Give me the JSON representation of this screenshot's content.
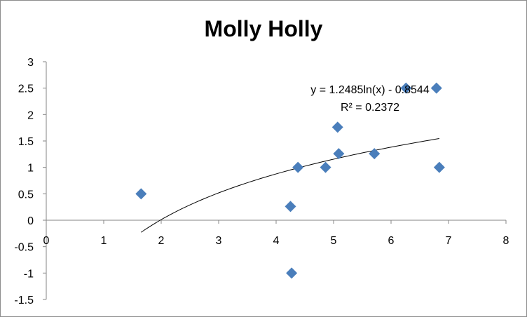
{
  "chart_data": {
    "type": "scatter",
    "title": "Molly Holly",
    "xlabel": "",
    "ylabel": "",
    "xlim": [
      0,
      8
    ],
    "ylim": [
      -1.5,
      3
    ],
    "x_ticks": [
      "0",
      "1",
      "2",
      "3",
      "4",
      "5",
      "6",
      "7",
      "8"
    ],
    "y_ticks": [
      "-1.5",
      "-1",
      "-0.5",
      "0",
      "0.5",
      "1",
      "1.5",
      "2",
      "2.5",
      "3"
    ],
    "grid": false,
    "legend": "none",
    "marker_color": "#4a7ebb",
    "points": [
      {
        "x": 1.65,
        "y": 0.5
      },
      {
        "x": 4.25,
        "y": 0.26
      },
      {
        "x": 4.27,
        "y": -1.0
      },
      {
        "x": 4.38,
        "y": 1.0
      },
      {
        "x": 4.86,
        "y": 1.0
      },
      {
        "x": 5.07,
        "y": 1.76
      },
      {
        "x": 5.09,
        "y": 1.26
      },
      {
        "x": 5.71,
        "y": 1.26
      },
      {
        "x": 6.26,
        "y": 2.5
      },
      {
        "x": 6.79,
        "y": 2.5
      },
      {
        "x": 6.84,
        "y": 1.0
      }
    ],
    "trendline": {
      "type": "logarithmic",
      "a": 1.2485,
      "b": -0.8544,
      "x_range": [
        1.65,
        6.84
      ],
      "equation_text": "y = 1.2485ln(x) - 0.8544",
      "r2_text": "R² = 0.2372"
    }
  }
}
